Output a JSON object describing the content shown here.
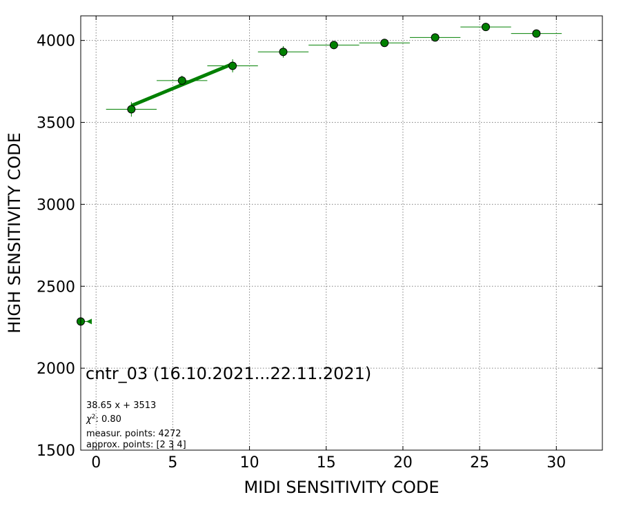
{
  "chart_data": {
    "type": "scatter",
    "xlabel": "MIDI SENSITIVITY CODE",
    "ylabel": "HIGH SENSITIVITY CODE",
    "xlim": [
      -1,
      33
    ],
    "ylim": [
      1500,
      4150
    ],
    "xticks": [
      0,
      5,
      10,
      15,
      20,
      25,
      30
    ],
    "yticks": [
      1500,
      2000,
      2500,
      3000,
      3500,
      4000
    ],
    "grid": true,
    "series": [
      {
        "type": "errorbar-points",
        "color": "#008000",
        "points": [
          {
            "x": 2.3,
            "y": 3580,
            "xerr": 1.65,
            "yerr": 45
          },
          {
            "x": 5.6,
            "y": 3755,
            "xerr": 1.65,
            "yerr": 30
          },
          {
            "x": 8.9,
            "y": 3845,
            "xerr": 1.65,
            "yerr": 40
          },
          {
            "x": 12.2,
            "y": 3930,
            "xerr": 1.65,
            "yerr": 35
          },
          {
            "x": 15.5,
            "y": 3972,
            "xerr": 1.65,
            "yerr": 25
          },
          {
            "x": 18.8,
            "y": 3985,
            "xerr": 1.65,
            "yerr": 15
          },
          {
            "x": 22.1,
            "y": 4018,
            "xerr": 1.65,
            "yerr": 10
          },
          {
            "x": 25.4,
            "y": 4082,
            "xerr": 1.65,
            "yerr": 10
          },
          {
            "x": 28.7,
            "y": 4042,
            "xerr": 1.65,
            "yerr": 8
          },
          {
            "x": -1.0,
            "y": 2285,
            "xerr_right": 0.7,
            "yerr": 0,
            "arrow": true
          }
        ]
      },
      {
        "type": "fit-line",
        "color": "#008000",
        "slope": 38.65,
        "intercept": 3513,
        "x_from": 2.3,
        "x_to": 8.9
      }
    ],
    "annotations": {
      "title": "cntr_03 (16.10.2021...22.11.2021)",
      "equation": "38.65 x + 3513",
      "chi2_label": "χ",
      "chi2_sup": "2",
      "chi2_value": ": 0.80",
      "measured": "measur. points: 4272",
      "approx": "approx. points: [2 3 4]"
    }
  }
}
